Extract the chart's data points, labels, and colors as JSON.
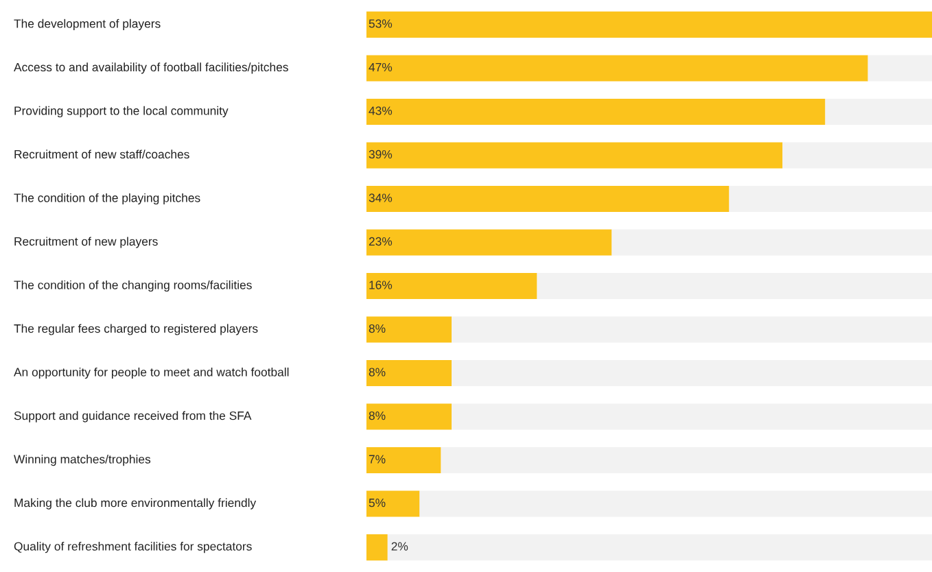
{
  "chart_data": {
    "type": "bar",
    "orientation": "horizontal",
    "stacked": true,
    "legend": false,
    "tick_labels": "y",
    "categories": [
      "The development of players",
      "Access to and availability of football facilities/pitches",
      "Providing support to the local community",
      "Recruitment of new staff/coaches",
      "The condition of the playing pitches",
      "Recruitment of new players",
      "The condition of the changing rooms/facilities",
      "The regular fees charged to registered players",
      "An opportunity for people to meet and watch football",
      "Support and guidance received from the SFA",
      "Winning matches/trophies",
      "Making the club more environmentally friendly",
      "Quality of refreshment facilities for spectators"
    ],
    "xlim": [
      0,
      53
    ],
    "series": [
      {
        "color": "#fbc31c",
        "values": [
          53,
          47,
          43,
          39,
          34,
          23,
          16,
          8,
          8,
          8,
          7,
          5,
          2
        ],
        "value_labels": [
          "53%",
          "47%",
          "43%",
          "39%",
          "34%",
          "23%",
          "16%",
          "8%",
          "8%",
          "8%",
          "7%",
          "5%",
          "2%"
        ]
      },
      {
        "color": "#f2f2f2",
        "values": [
          0,
          6,
          10,
          14,
          19,
          30,
          37,
          45,
          45,
          45,
          46,
          48,
          51
        ]
      }
    ]
  }
}
